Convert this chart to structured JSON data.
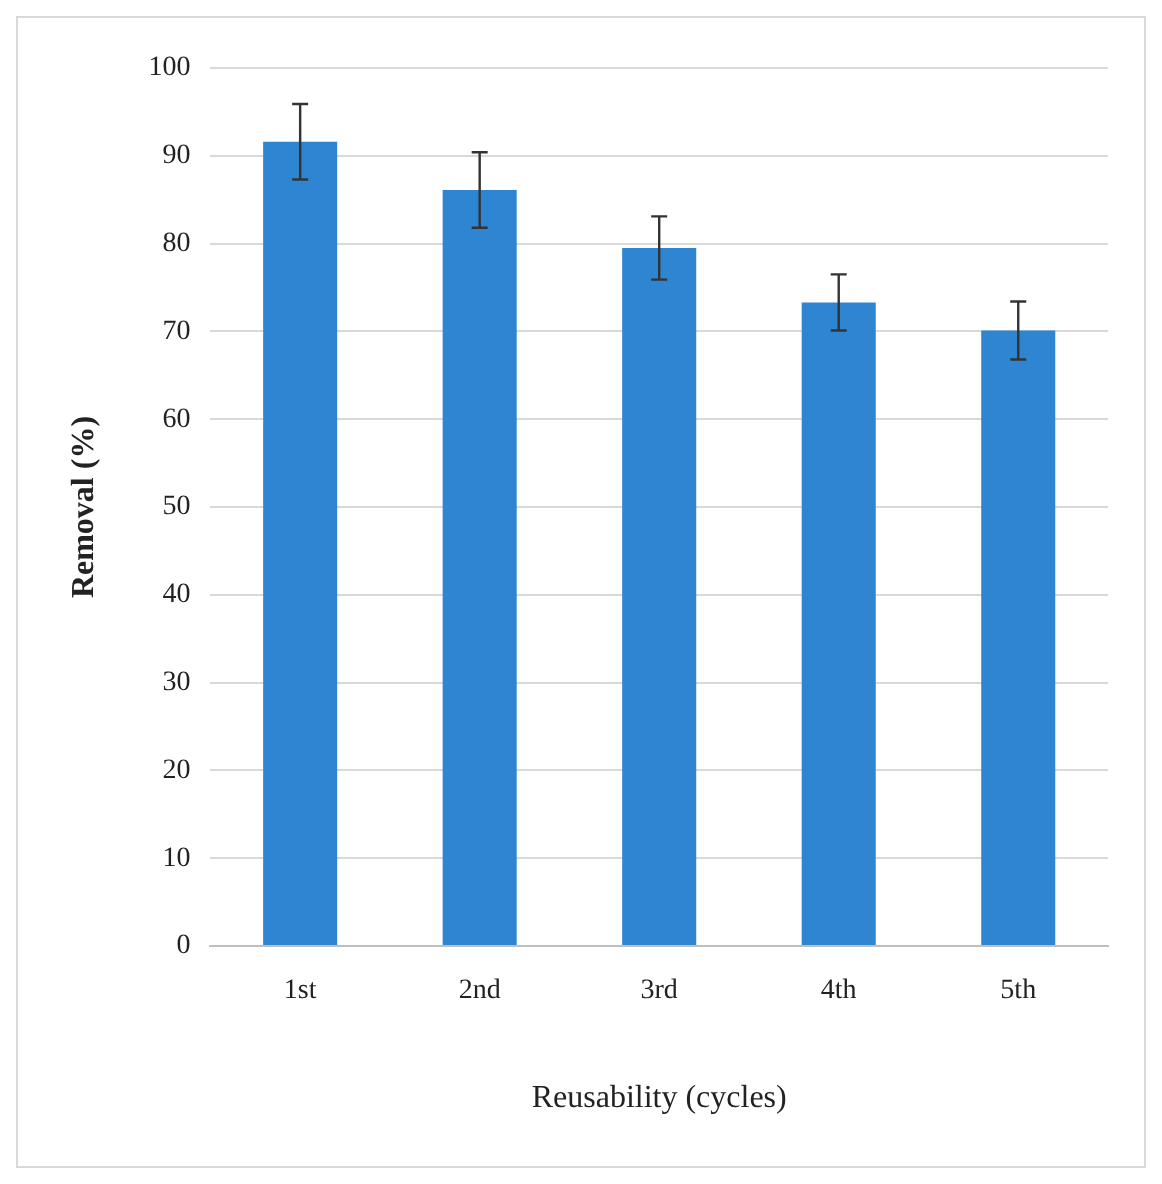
{
  "chart_data": {
    "type": "bar",
    "xlabel": "Reusability (cycles)",
    "ylabel": "Removal (%)",
    "categories": [
      "1st",
      "2nd",
      "3rd",
      "4th",
      "5th"
    ],
    "values": [
      91.6,
      86.1,
      79.5,
      73.3,
      70.1
    ],
    "errors": [
      4.3,
      4.3,
      3.6,
      3.2,
      3.3
    ],
    "color": "#2e86d3",
    "ylim": [
      0,
      100
    ],
    "yticks": [
      0,
      10,
      20,
      30,
      40,
      50,
      60,
      70,
      80,
      90,
      100
    ],
    "grid": "y"
  }
}
